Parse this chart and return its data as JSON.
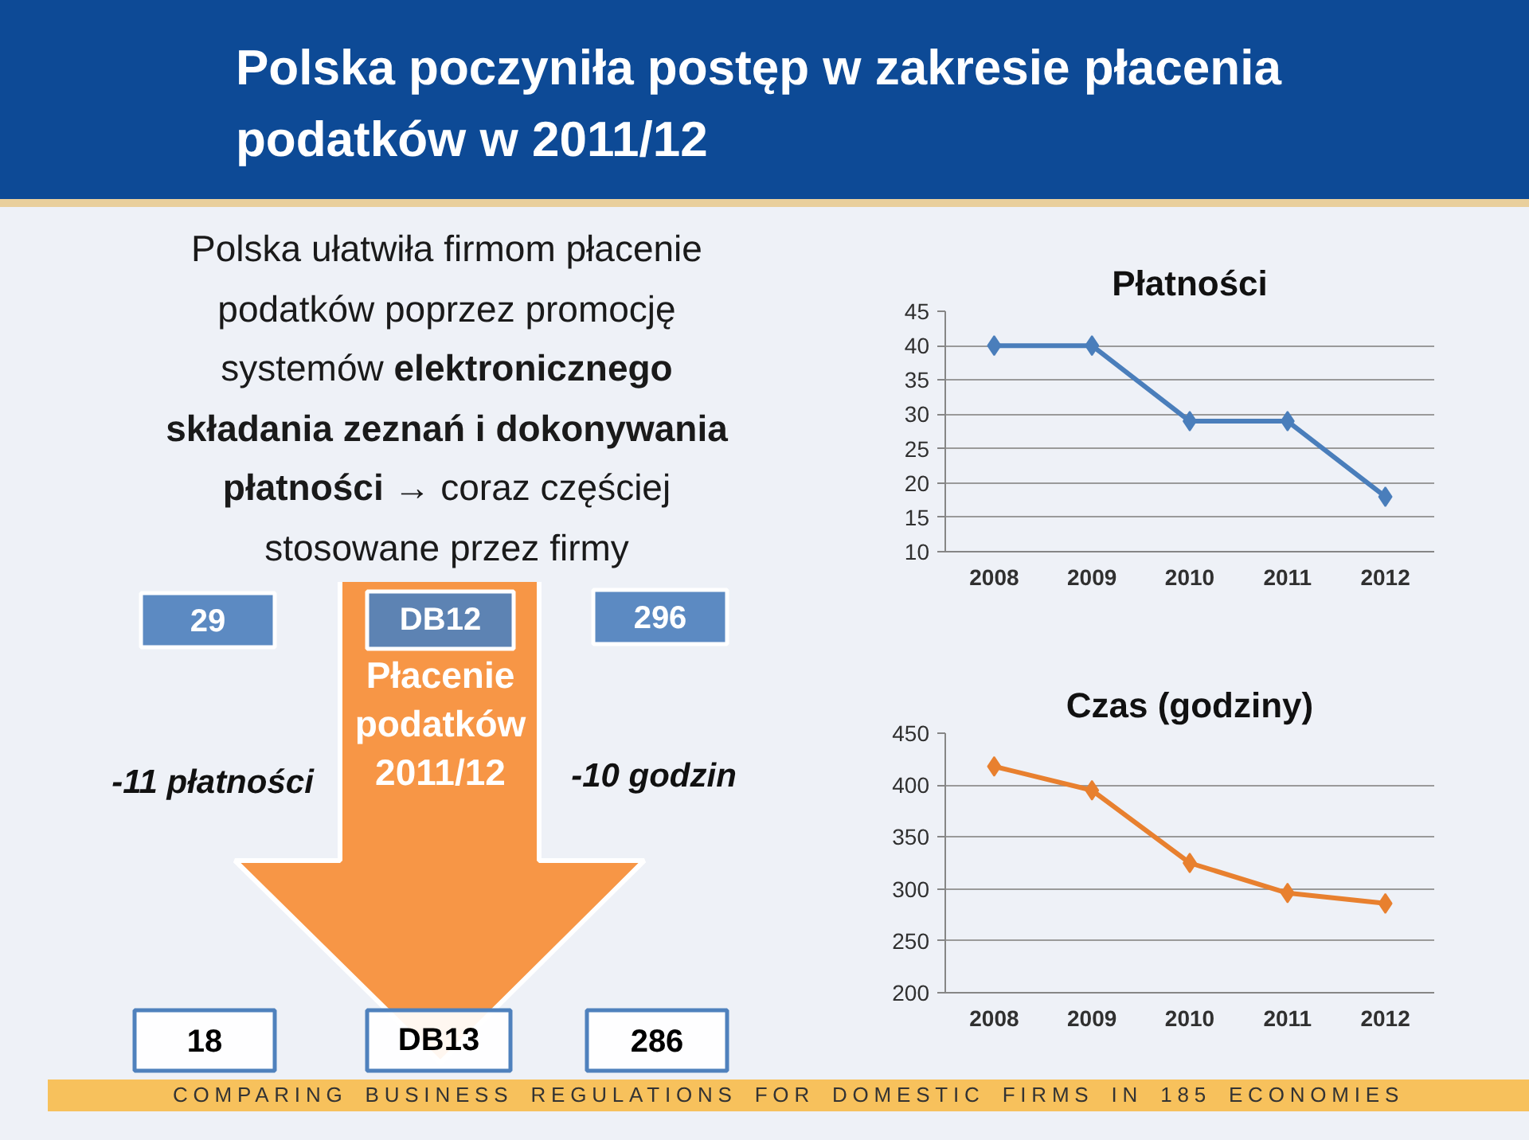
{
  "chart_data": [
    {
      "type": "other",
      "title": "Polska poczyniła postęp w zakresie płacenia podatków w 2011/12",
      "annotations": [
        "Polska ułatwiła firmom płacenie podatków poprzez promocję systemów elektronicznego składania zeznań i dokonywania płatności → coraz częściej stosowane przez firmy",
        "29",
        "DB12",
        "296",
        "-11 płatności",
        "Płacenie podatków 2011/12",
        "-10 godzin",
        "18",
        "DB13",
        "286",
        "COMPARING BUSINESS REGULATIONS FOR DOMESTIC FIRMS IN 185 ECONOMIES"
      ]
    },
    {
      "type": "line",
      "title": "Płatności",
      "categories": [
        "2008",
        "2009",
        "2010",
        "2011",
        "2012"
      ],
      "series": [
        {
          "color": "#4a7ebb",
          "values": [
            40,
            40,
            29,
            29,
            18
          ]
        }
      ],
      "ylim": [
        10,
        45
      ],
      "yticks": [
        10,
        15,
        20,
        25,
        30,
        35,
        40,
        45
      ],
      "grid": "y",
      "marker": "diamond"
    },
    {
      "type": "line",
      "title": "Czas (godziny)",
      "categories": [
        "2008",
        "2009",
        "2010",
        "2011",
        "2012"
      ],
      "series": [
        {
          "color": "#e8802f",
          "values": [
            418,
            395,
            325,
            296,
            286
          ]
        }
      ],
      "ylim": [
        200,
        450
      ],
      "yticks": [
        200,
        250,
        300,
        350,
        400,
        450
      ],
      "grid": "y",
      "marker": "diamond"
    }
  ]
}
